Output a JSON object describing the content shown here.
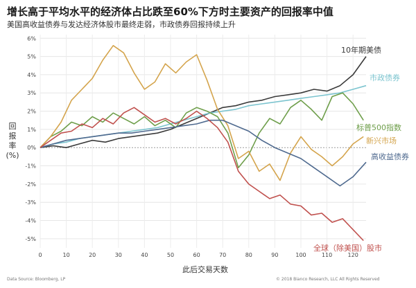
{
  "title": "增长高于平均水平的经济体占比跌至60%下方时主要资产的回报率中值",
  "subtitle": "美国高收益债券与发达经济体股市最终走弱，市政债券回报持续上升",
  "source": "Data Source: Bloomberg, LP",
  "copyright": "© 2018 Bianco Research, LLC All Rights Reserved",
  "chart_data": {
    "type": "line",
    "xlabel": "此后交易天数",
    "ylabel": "回报率 (%)",
    "xlim": [
      0,
      125
    ],
    "ylim": [
      -5.5,
      6.2
    ],
    "x_ticks": [
      0,
      10,
      20,
      30,
      40,
      50,
      60,
      70,
      80,
      90,
      100,
      110,
      120
    ],
    "y_ticks": [
      6,
      5,
      4,
      3,
      2,
      1,
      0,
      -1,
      -2,
      -3,
      -4,
      -5
    ],
    "y_tick_labels": [
      "6%",
      "5%",
      "4%",
      "3%",
      "2%",
      "1%",
      "0%",
      "-1%",
      "-2%",
      "-3%",
      "-4%",
      "-5%"
    ],
    "grid": true,
    "series": [
      {
        "name": "10年期美债",
        "color": "#3a3a3a",
        "x": [
          0,
          5,
          10,
          15,
          20,
          25,
          30,
          35,
          40,
          45,
          50,
          55,
          60,
          65,
          70,
          75,
          80,
          85,
          90,
          95,
          100,
          105,
          110,
          115,
          120,
          125
        ],
        "y": [
          0.0,
          0.1,
          0.0,
          0.2,
          0.4,
          0.3,
          0.5,
          0.6,
          0.7,
          0.8,
          1.0,
          1.3,
          1.6,
          1.9,
          2.2,
          2.3,
          2.5,
          2.6,
          2.8,
          2.9,
          3.0,
          3.2,
          3.1,
          3.4,
          4.0,
          5.0
        ]
      },
      {
        "name": "市政债券",
        "color": "#7cc4cf",
        "x": [
          0,
          5,
          10,
          15,
          20,
          25,
          30,
          35,
          40,
          45,
          50,
          55,
          60,
          65,
          70,
          75,
          80,
          85,
          90,
          95,
          100,
          105,
          110,
          115,
          120,
          125
        ],
        "y": [
          0.0,
          0.2,
          0.3,
          0.5,
          0.6,
          0.7,
          0.8,
          0.9,
          1.0,
          1.1,
          1.3,
          1.5,
          1.7,
          1.9,
          2.0,
          2.1,
          2.3,
          2.4,
          2.5,
          2.6,
          2.7,
          2.8,
          2.9,
          3.0,
          3.2,
          3.4
        ]
      },
      {
        "name": "标普500指数",
        "color": "#6e9e4a",
        "x": [
          0,
          4,
          8,
          12,
          16,
          20,
          24,
          28,
          32,
          36,
          40,
          44,
          48,
          52,
          56,
          60,
          64,
          68,
          72,
          76,
          80,
          84,
          88,
          92,
          96,
          100,
          104,
          108,
          112,
          116,
          120,
          124
        ],
        "y": [
          0.0,
          0.6,
          0.9,
          1.4,
          1.2,
          1.7,
          1.4,
          1.9,
          1.6,
          1.3,
          1.7,
          1.2,
          1.5,
          1.1,
          1.9,
          2.2,
          2.0,
          1.7,
          0.8,
          -1.1,
          -0.4,
          0.8,
          1.6,
          1.3,
          2.2,
          2.6,
          2.1,
          1.5,
          2.8,
          3.0,
          2.4,
          1.5
        ]
      },
      {
        "name": "新兴市场",
        "color": "#d4a44c",
        "x": [
          0,
          4,
          8,
          12,
          16,
          20,
          24,
          28,
          32,
          36,
          40,
          44,
          48,
          52,
          56,
          60,
          64,
          68,
          72,
          76,
          80,
          84,
          88,
          92,
          96,
          100,
          104,
          108,
          112,
          116,
          120,
          124
        ],
        "y": [
          0.0,
          0.6,
          1.4,
          2.6,
          3.2,
          3.8,
          4.8,
          5.6,
          5.2,
          4.1,
          3.2,
          3.6,
          4.6,
          4.1,
          4.7,
          5.1,
          3.7,
          2.1,
          1.2,
          -0.6,
          -0.2,
          -1.3,
          -0.9,
          -1.8,
          -0.3,
          0.6,
          -0.1,
          -0.5,
          -1.0,
          -0.5,
          0.2,
          0.6
        ]
      },
      {
        "name": "高收益债券",
        "color": "#4f6a8f",
        "x": [
          0,
          5,
          10,
          15,
          20,
          25,
          30,
          35,
          40,
          45,
          50,
          55,
          60,
          65,
          70,
          75,
          80,
          85,
          90,
          95,
          100,
          105,
          110,
          115,
          120,
          125
        ],
        "y": [
          0.0,
          0.2,
          0.4,
          0.5,
          0.6,
          0.7,
          0.8,
          0.8,
          0.9,
          1.0,
          1.1,
          1.2,
          1.3,
          1.5,
          1.5,
          1.2,
          0.9,
          0.4,
          0.0,
          -0.3,
          -0.6,
          -1.1,
          -1.6,
          -2.1,
          -1.6,
          -0.8
        ]
      },
      {
        "name": "全球（除美国）股市",
        "color": "#c0504d",
        "x": [
          0,
          4,
          8,
          12,
          16,
          20,
          24,
          28,
          32,
          36,
          40,
          44,
          48,
          52,
          56,
          60,
          64,
          68,
          72,
          76,
          80,
          84,
          88,
          92,
          96,
          100,
          104,
          108,
          112,
          116,
          120,
          124
        ],
        "y": [
          0.0,
          0.4,
          0.8,
          0.9,
          1.3,
          1.1,
          1.6,
          1.3,
          1.9,
          2.2,
          1.8,
          1.4,
          1.6,
          1.3,
          1.6,
          2.0,
          1.6,
          1.1,
          0.3,
          -1.3,
          -2.0,
          -2.4,
          -2.8,
          -2.6,
          -3.1,
          -3.2,
          -3.7,
          -3.6,
          -4.1,
          -3.9,
          -4.5,
          -5.1
        ]
      }
    ]
  }
}
